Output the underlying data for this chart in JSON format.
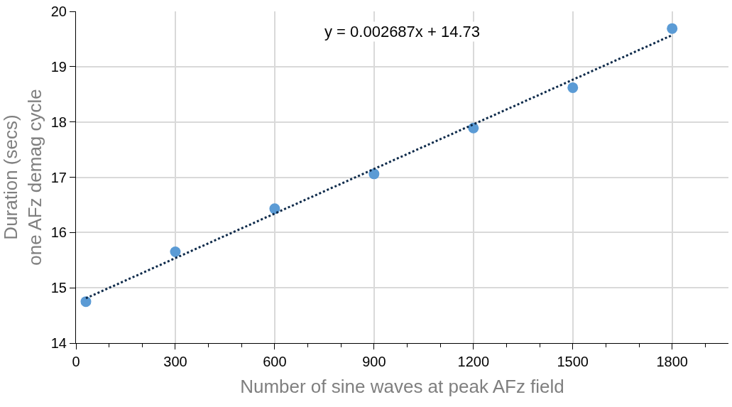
{
  "chart_data": {
    "type": "scatter",
    "xlabel": "Number of sine waves at peak AFz field",
    "ylabel": "Duration (secs)\none AFz demag cycle",
    "series": [
      {
        "color": "#5b9bd5",
        "marker": "circle",
        "x": [
          30,
          300,
          600,
          900,
          1200,
          1500,
          1800
        ],
        "values": [
          14.75,
          15.65,
          16.43,
          17.06,
          17.89,
          18.62,
          19.69
        ]
      },
      {
        "type": "line",
        "color": "#0d2a4a",
        "line_style": "dotted",
        "marker": "none",
        "x": [
          30,
          1800
        ],
        "values": [
          14.81,
          19.57
        ]
      }
    ],
    "annotations": [
      "y = 0.002687x + 14.73"
    ],
    "xlim": [
      0,
      1970
    ],
    "xticks": [
      0,
      300,
      600,
      900,
      1200,
      1500,
      1800
    ],
    "ylim": [
      14,
      20
    ],
    "yticks": [
      14,
      15,
      16,
      17,
      18,
      19,
      20
    ],
    "grid": true
  }
}
